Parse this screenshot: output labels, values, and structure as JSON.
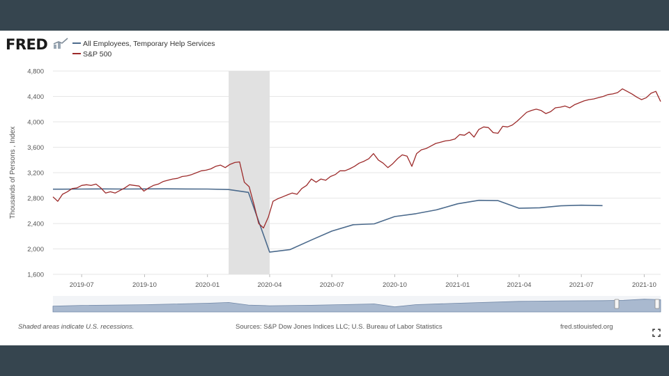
{
  "brand": {
    "logo_text": "FRED"
  },
  "legend": [
    {
      "label": "All Employees, Temporary Help Services",
      "color": "#4b6a8c"
    },
    {
      "label": "S&P 500",
      "color": "#9c2a2a"
    }
  ],
  "footer": {
    "recession_note": "Shaded areas indicate U.S. recessions.",
    "sources": "Sources: S&P Dow Jones Indices LLC; U.S. Bureau of Labor Statistics",
    "site": "fred.stlouisfed.org",
    "fullscreen_icon": "expand-icon"
  },
  "chart_data": {
    "type": "line",
    "title": "",
    "xlabel": "",
    "ylabel": "Thousands of Persons , Index",
    "ylim": [
      1600,
      4800
    ],
    "yticks": [
      1600,
      2000,
      2400,
      2800,
      3200,
      3600,
      4000,
      4400,
      4800
    ],
    "ytick_labels": [
      "1,600",
      "2,000",
      "2,400",
      "2,800",
      "3,200",
      "3,600",
      "4,000",
      "4,400",
      "4,800"
    ],
    "xlim": [
      "2019-05-20",
      "2021-10-25"
    ],
    "xticks": [
      "2019-07-01",
      "2019-10-01",
      "2020-01-01",
      "2020-04-01",
      "2020-07-01",
      "2020-10-01",
      "2021-01-01",
      "2021-04-01",
      "2021-07-01",
      "2021-10-01"
    ],
    "xtick_labels": [
      "2019-07",
      "2019-10",
      "2020-01",
      "2020-04",
      "2020-07",
      "2020-10",
      "2021-01",
      "2021-04",
      "2021-07",
      "2021-10"
    ],
    "grid": true,
    "recession": {
      "start": "2020-02-01",
      "end": "2020-04-01"
    },
    "series": [
      {
        "name": "All Employees, Temporary Help Services",
        "color": "#4b6a8c",
        "x": [
          "2019-05-20",
          "2019-06-01",
          "2019-07-01",
          "2019-08-01",
          "2019-09-01",
          "2019-10-01",
          "2019-11-01",
          "2019-12-01",
          "2020-01-01",
          "2020-02-01",
          "2020-03-01",
          "2020-04-01",
          "2020-05-01",
          "2020-06-01",
          "2020-07-01",
          "2020-08-01",
          "2020-09-01",
          "2020-10-01",
          "2020-11-01",
          "2020-12-01",
          "2021-01-01",
          "2021-02-01",
          "2021-03-01",
          "2021-04-01",
          "2021-05-01",
          "2021-06-01",
          "2021-07-01",
          "2021-08-01"
        ],
        "values": [
          2940,
          2940,
          2942,
          2945,
          2943,
          2945,
          2946,
          2944,
          2943,
          2935,
          2890,
          1950,
          1990,
          2140,
          2280,
          2380,
          2395,
          2510,
          2555,
          2615,
          2710,
          2765,
          2760,
          2640,
          2648,
          2678,
          2688,
          2682
        ]
      },
      {
        "name": "S&P 500",
        "color": "#9c2a2a",
        "x": [
          "2019-05-20",
          "2019-05-27",
          "2019-06-03",
          "2019-06-10",
          "2019-06-17",
          "2019-06-24",
          "2019-07-01",
          "2019-07-08",
          "2019-07-15",
          "2019-07-22",
          "2019-07-29",
          "2019-08-05",
          "2019-08-12",
          "2019-08-19",
          "2019-08-26",
          "2019-09-02",
          "2019-09-09",
          "2019-09-16",
          "2019-09-23",
          "2019-09-30",
          "2019-10-07",
          "2019-10-14",
          "2019-10-21",
          "2019-10-28",
          "2019-11-04",
          "2019-11-11",
          "2019-11-18",
          "2019-11-25",
          "2019-12-02",
          "2019-12-09",
          "2019-12-16",
          "2019-12-23",
          "2019-12-30",
          "2020-01-06",
          "2020-01-13",
          "2020-01-20",
          "2020-01-27",
          "2020-02-03",
          "2020-02-10",
          "2020-02-17",
          "2020-02-24",
          "2020-03-02",
          "2020-03-09",
          "2020-03-16",
          "2020-03-23",
          "2020-03-30",
          "2020-04-06",
          "2020-04-13",
          "2020-04-20",
          "2020-04-27",
          "2020-05-04",
          "2020-05-11",
          "2020-05-18",
          "2020-05-25",
          "2020-06-01",
          "2020-06-08",
          "2020-06-15",
          "2020-06-22",
          "2020-06-29",
          "2020-07-06",
          "2020-07-13",
          "2020-07-20",
          "2020-07-27",
          "2020-08-03",
          "2020-08-10",
          "2020-08-17",
          "2020-08-24",
          "2020-08-31",
          "2020-09-07",
          "2020-09-14",
          "2020-09-21",
          "2020-09-28",
          "2020-10-05",
          "2020-10-12",
          "2020-10-19",
          "2020-10-26",
          "2020-11-02",
          "2020-11-09",
          "2020-11-16",
          "2020-11-23",
          "2020-11-30",
          "2020-12-07",
          "2020-12-14",
          "2020-12-21",
          "2020-12-28",
          "2021-01-04",
          "2021-01-11",
          "2021-01-18",
          "2021-01-25",
          "2021-02-01",
          "2021-02-08",
          "2021-02-15",
          "2021-02-22",
          "2021-03-01",
          "2021-03-08",
          "2021-03-15",
          "2021-03-22",
          "2021-03-29",
          "2021-04-05",
          "2021-04-12",
          "2021-04-19",
          "2021-04-26",
          "2021-05-03",
          "2021-05-10",
          "2021-05-17",
          "2021-05-24",
          "2021-05-31",
          "2021-06-07",
          "2021-06-14",
          "2021-06-21",
          "2021-06-28",
          "2021-07-05",
          "2021-07-12",
          "2021-07-19",
          "2021-07-26",
          "2021-08-02",
          "2021-08-09",
          "2021-08-16",
          "2021-08-23",
          "2021-08-30",
          "2021-09-06",
          "2021-09-13",
          "2021-09-20",
          "2021-09-27",
          "2021-10-04",
          "2021-10-11",
          "2021-10-18",
          "2021-10-25"
        ],
        "values": [
          2820,
          2750,
          2860,
          2900,
          2950,
          2960,
          3000,
          3010,
          3000,
          3020,
          2960,
          2880,
          2900,
          2880,
          2920,
          2960,
          3010,
          3000,
          2990,
          2910,
          2960,
          3000,
          3020,
          3060,
          3080,
          3100,
          3110,
          3140,
          3150,
          3170,
          3200,
          3230,
          3240,
          3260,
          3300,
          3320,
          3280,
          3330,
          3360,
          3370,
          3050,
          2980,
          2700,
          2400,
          2330,
          2500,
          2750,
          2790,
          2820,
          2850,
          2880,
          2860,
          2950,
          3000,
          3100,
          3050,
          3100,
          3080,
          3140,
          3170,
          3230,
          3230,
          3260,
          3300,
          3350,
          3380,
          3420,
          3500,
          3400,
          3350,
          3280,
          3340,
          3420,
          3480,
          3460,
          3300,
          3500,
          3560,
          3580,
          3620,
          3660,
          3680,
          3700,
          3710,
          3730,
          3800,
          3790,
          3840,
          3760,
          3880,
          3920,
          3910,
          3830,
          3820,
          3930,
          3920,
          3950,
          4010,
          4080,
          4150,
          4180,
          4200,
          4180,
          4130,
          4160,
          4220,
          4230,
          4250,
          4220,
          4270,
          4300,
          4330,
          4350,
          4360,
          4380,
          4400,
          4430,
          4440,
          4460,
          4520,
          4480,
          4440,
          4390,
          4350,
          4380,
          4450,
          4480,
          4320
        ]
      }
    ],
    "navigator": {
      "x": [
        "2019-05-20",
        "2019-07-01",
        "2019-10-01",
        "2020-01-01",
        "2020-02-01",
        "2020-03-01",
        "2020-04-01",
        "2020-06-01",
        "2020-09-01",
        "2020-10-01",
        "2020-11-01",
        "2021-01-01",
        "2021-04-01",
        "2021-06-01",
        "2021-08-01",
        "2021-09-01",
        "2021-10-01",
        "2021-10-25"
      ],
      "values": [
        2800,
        2900,
        2990,
        3200,
        3300,
        2950,
        2850,
        2920,
        3100,
        2700,
        3000,
        3200,
        3450,
        3520,
        3550,
        3600,
        3750,
        3680
      ]
    }
  }
}
